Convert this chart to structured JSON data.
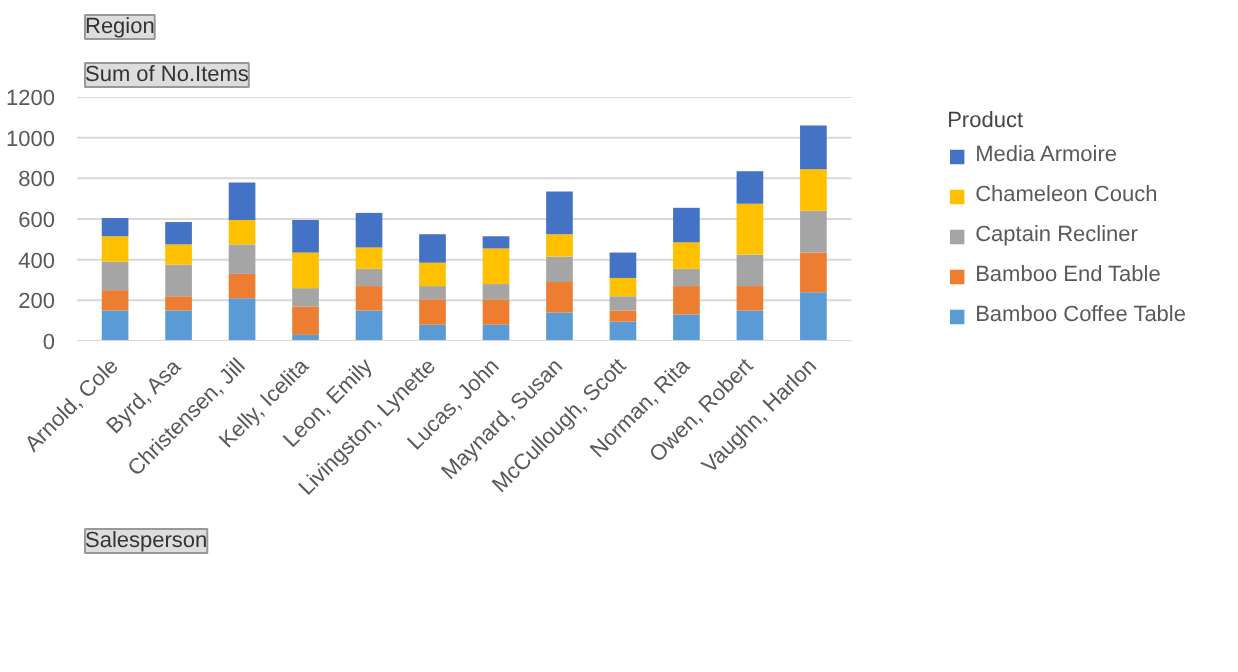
{
  "chart_data": {
    "type": "bar",
    "stacked": true,
    "xlabel": "Salesperson",
    "ylabel": "Sum of No.Items",
    "legend_title": "Product",
    "annotations": [
      "Region"
    ],
    "categories": [
      "Arnold, Cole",
      "Byrd, Asa",
      "Christensen, Jill",
      "Kelly, Icelita",
      "Leon, Emily",
      "Livingston, Lynette",
      "Lucas, John",
      "Maynard, Susan",
      "McCullough, Scott",
      "Norman, Rita",
      "Owen, Robert",
      "Vaughn, Harlon"
    ],
    "series": [
      {
        "name": "Bamboo Coffee Table",
        "color": "#5b9bd5",
        "values": [
          150,
          150,
          210,
          30,
          150,
          80,
          80,
          140,
          95,
          130,
          150,
          240
        ]
      },
      {
        "name": "Bamboo End Table",
        "color": "#ed7d31",
        "values": [
          100,
          70,
          120,
          140,
          120,
          125,
          125,
          150,
          55,
          140,
          120,
          195
        ]
      },
      {
        "name": "Captain Recliner",
        "color": "#a5a5a5",
        "values": [
          140,
          155,
          145,
          90,
          85,
          65,
          75,
          125,
          70,
          85,
          155,
          205
        ]
      },
      {
        "name": "Chameleon Couch",
        "color": "#ffc000",
        "values": [
          125,
          100,
          120,
          175,
          105,
          115,
          175,
          110,
          90,
          130,
          250,
          205
        ]
      },
      {
        "name": "Media Armoire",
        "color": "#4472c4",
        "values": [
          90,
          110,
          185,
          160,
          170,
          140,
          60,
          210,
          125,
          170,
          160,
          215
        ]
      }
    ],
    "ylim": [
      0,
      1200
    ],
    "yticks": [
      0,
      200,
      400,
      600,
      800,
      1000,
      1200
    ],
    "grid": "y",
    "legend": "right"
  }
}
